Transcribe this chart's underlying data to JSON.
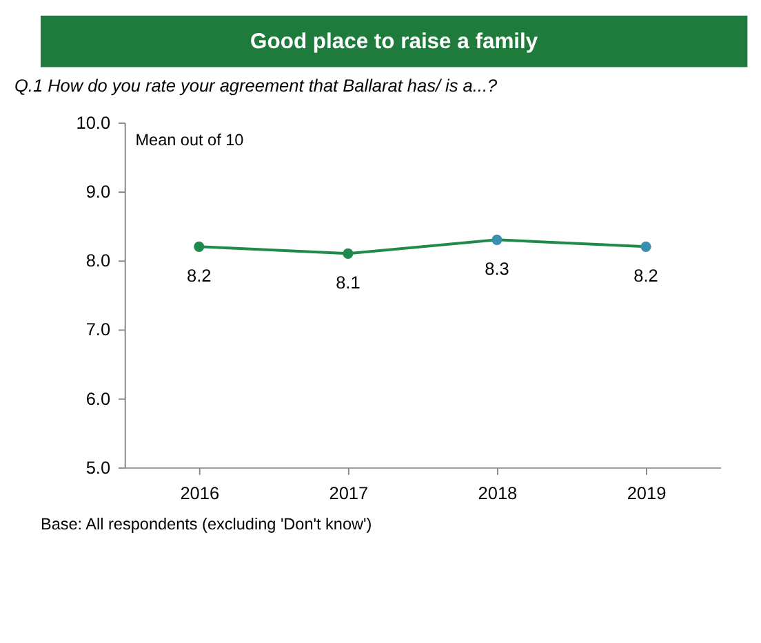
{
  "chart_data": {
    "type": "line",
    "title": "Good place to raise a family",
    "subtitle": "Q.1 How do you rate your agreement that Ballarat has/ is a...?",
    "categories": [
      "2016",
      "2017",
      "2018",
      "2019"
    ],
    "series": [
      {
        "color": "#1e8a4c",
        "values": [
          8.2,
          8.1,
          8.3,
          8.2
        ],
        "colors": [
          "#1e8a4c",
          "#1e8a4c",
          "#3a8fb0",
          "#3a8fb0"
        ]
      }
    ],
    "ylim": [
      5,
      10
    ],
    "yticks": [
      {
        "value": 5,
        "label": "5.0"
      },
      {
        "value": 6,
        "label": "6.0"
      },
      {
        "value": 7,
        "label": "7.0"
      },
      {
        "value": 8,
        "label": "8.0"
      },
      {
        "value": 9,
        "label": "9.0"
      },
      {
        "value": 10,
        "label": "10.0"
      }
    ],
    "marker": "circle",
    "line_style": "solid",
    "data_labels": true,
    "grid": false,
    "legend": false,
    "annotations": [
      "Mean out of 10",
      "Base: All respondents (excluding 'Don't know')"
    ]
  }
}
